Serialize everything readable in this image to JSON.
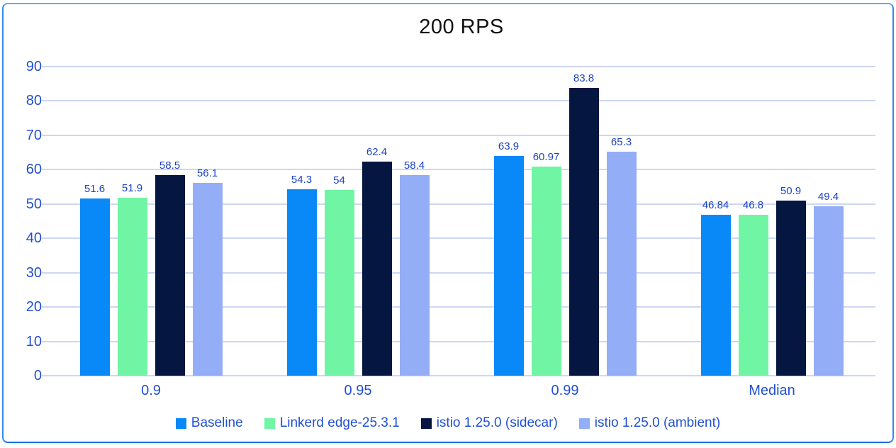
{
  "chart_data": {
    "type": "bar",
    "title": "200 RPS",
    "xlabel": "",
    "ylabel": "",
    "categories": [
      "0.9",
      "0.95",
      "0.99",
      "Median"
    ],
    "series": [
      {
        "name": "Baseline",
        "color": "#0989f8",
        "values": [
          51.6,
          54.3,
          63.9,
          46.84
        ]
      },
      {
        "name": "Linkerd edge-25.3.1",
        "color": "#70f5a4",
        "values": [
          51.9,
          54,
          60.97,
          46.8
        ]
      },
      {
        "name": "istio 1.25.0 (sidecar)",
        "color": "#051640",
        "values": [
          58.5,
          62.4,
          83.8,
          50.9
        ]
      },
      {
        "name": "istio 1.25.0 (ambient)",
        "color": "#94adf7",
        "values": [
          56.1,
          58.4,
          65.3,
          49.4
        ]
      }
    ],
    "ylim": [
      0,
      90
    ],
    "yticks": [
      0,
      10,
      20,
      30,
      40,
      50,
      60,
      70,
      80,
      90
    ],
    "grid": "horizontal",
    "legend_position": "bottom",
    "data_labels_shown": true
  },
  "theme": {
    "accent_border": "#3389f2",
    "border_top": "#5fa8f4",
    "border_bottom": "#1b71e3",
    "grid": "#ccd7f2",
    "axis_text": "#2150d2",
    "data_label_text": "#1c43c4",
    "title_text": "#111111",
    "background": "#ffffff"
  }
}
